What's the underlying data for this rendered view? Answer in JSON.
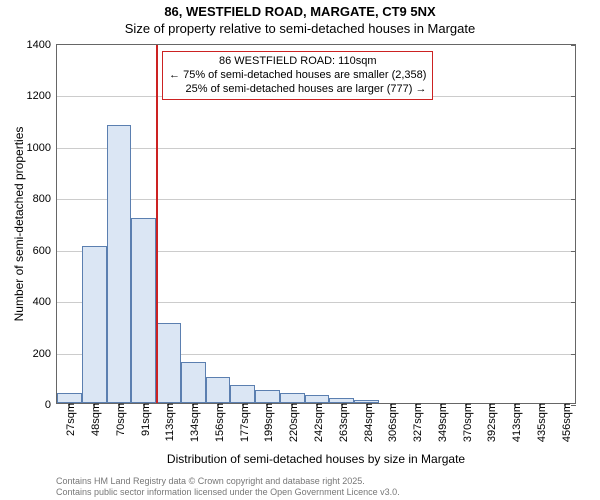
{
  "title": {
    "line1": "86, WESTFIELD ROAD, MARGATE, CT9 5NX",
    "line2": "Size of property relative to semi-detached houses in Margate"
  },
  "chart": {
    "type": "histogram",
    "ylabel": "Number of semi-detached properties",
    "xlabel": "Distribution of semi-detached houses by size in Margate",
    "ylim": [
      0,
      1400
    ],
    "ytick_step": 200,
    "bar_fill": "#dbe6f4",
    "bar_stroke": "#5b7fb0",
    "grid_color": "#cccccc",
    "axis_color": "#666666",
    "background_color": "#ffffff",
    "x_categories": [
      "27sqm",
      "48sqm",
      "70sqm",
      "91sqm",
      "113sqm",
      "134sqm",
      "156sqm",
      "177sqm",
      "199sqm",
      "220sqm",
      "242sqm",
      "263sqm",
      "284sqm",
      "306sqm",
      "327sqm",
      "349sqm",
      "370sqm",
      "392sqm",
      "413sqm",
      "435sqm",
      "456sqm"
    ],
    "values": [
      40,
      610,
      1080,
      720,
      310,
      160,
      100,
      70,
      50,
      40,
      30,
      20,
      10,
      0,
      0,
      0,
      0,
      0,
      0,
      0,
      0
    ],
    "marker": {
      "position_index": 4,
      "color": "#cc2222"
    },
    "annotation": {
      "line1": "86 WESTFIELD ROAD: 110sqm",
      "line2": "← 75% of semi-detached houses are smaller (2,358)",
      "line3": "25% of semi-detached houses are larger (777) →",
      "border_color": "#cc2222"
    }
  },
  "credits": {
    "line1": "Contains HM Land Registry data © Crown copyright and database right 2025.",
    "line2": "Contains public sector information licensed under the Open Government Licence v3.0."
  }
}
